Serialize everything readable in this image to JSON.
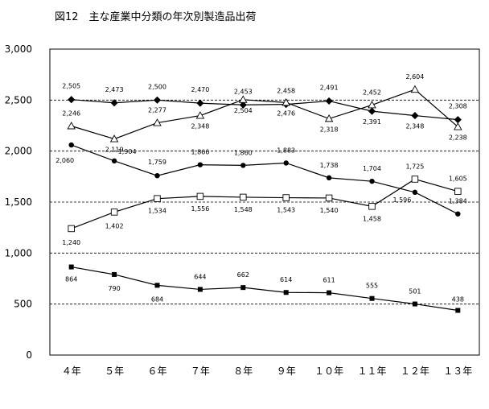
{
  "chart_data": {
    "type": "line",
    "title": "図12　主な産業中分類の年次別製造品出荷",
    "xlabel": "",
    "ylabel": "",
    "categories": [
      "４年",
      "５年",
      "６年",
      "７年",
      "８年",
      "９年",
      "１０年",
      "１１年",
      "１２年",
      "１３年"
    ],
    "ylim": [
      0,
      3000
    ],
    "yticks": [
      0,
      500,
      1000,
      1500,
      2000,
      2500,
      3000
    ],
    "ytick_labels": [
      "0",
      "500",
      "1,000",
      "1,500",
      "2,000",
      "2,500",
      "3,000"
    ],
    "grid": "dashed horizontal at 500, 1,000, 1,500, 2,000, 2,500",
    "legend": "none",
    "series": [
      {
        "marker": "filled-diamond",
        "color": "#000000",
        "values": [
          2505,
          2473,
          2500,
          2470,
          2453,
          2458,
          2491,
          2391,
          2348,
          2308
        ],
        "labels": [
          "2,505",
          "2,473",
          "2,500",
          "2,470",
          "2,453",
          "2,458",
          "2,491",
          "2,391",
          "2,348",
          "2,308"
        ]
      },
      {
        "marker": "open-triangle",
        "color": "#000000",
        "values": [
          2246,
          2119,
          2277,
          2348,
          2504,
          2476,
          2318,
          2452,
          2604,
          2238
        ],
        "labels": [
          "2,246",
          "2,119",
          "2,277",
          "2,348",
          "2,504",
          "2,476",
          "2,318",
          "2,452",
          "2,604",
          "2,238"
        ]
      },
      {
        "marker": "filled-circle",
        "color": "#000000",
        "values": [
          2060,
          1904,
          1759,
          1866,
          1860,
          1883,
          1738,
          1704,
          1596,
          1384
        ],
        "labels": [
          "2,060",
          "1,904",
          "1,759",
          "1,866",
          "1,860",
          "1,883",
          "1,738",
          "1,704",
          "1,596",
          "1,384"
        ]
      },
      {
        "marker": "open-square",
        "color": "#000000",
        "values": [
          1240,
          1402,
          1534,
          1556,
          1548,
          1543,
          1540,
          1458,
          1725,
          1605
        ],
        "labels": [
          "1,240",
          "1,402",
          "1,534",
          "1,556",
          "1,548",
          "1,543",
          "1,540",
          "1,458",
          "1,725",
          "1,605"
        ]
      },
      {
        "marker": "filled-square",
        "color": "#000000",
        "values": [
          864,
          790,
          684,
          644,
          662,
          614,
          611,
          555,
          501,
          438
        ],
        "labels": [
          "864",
          "790",
          "684",
          "644",
          "662",
          "614",
          "611",
          "555",
          "501",
          "438"
        ]
      }
    ]
  }
}
